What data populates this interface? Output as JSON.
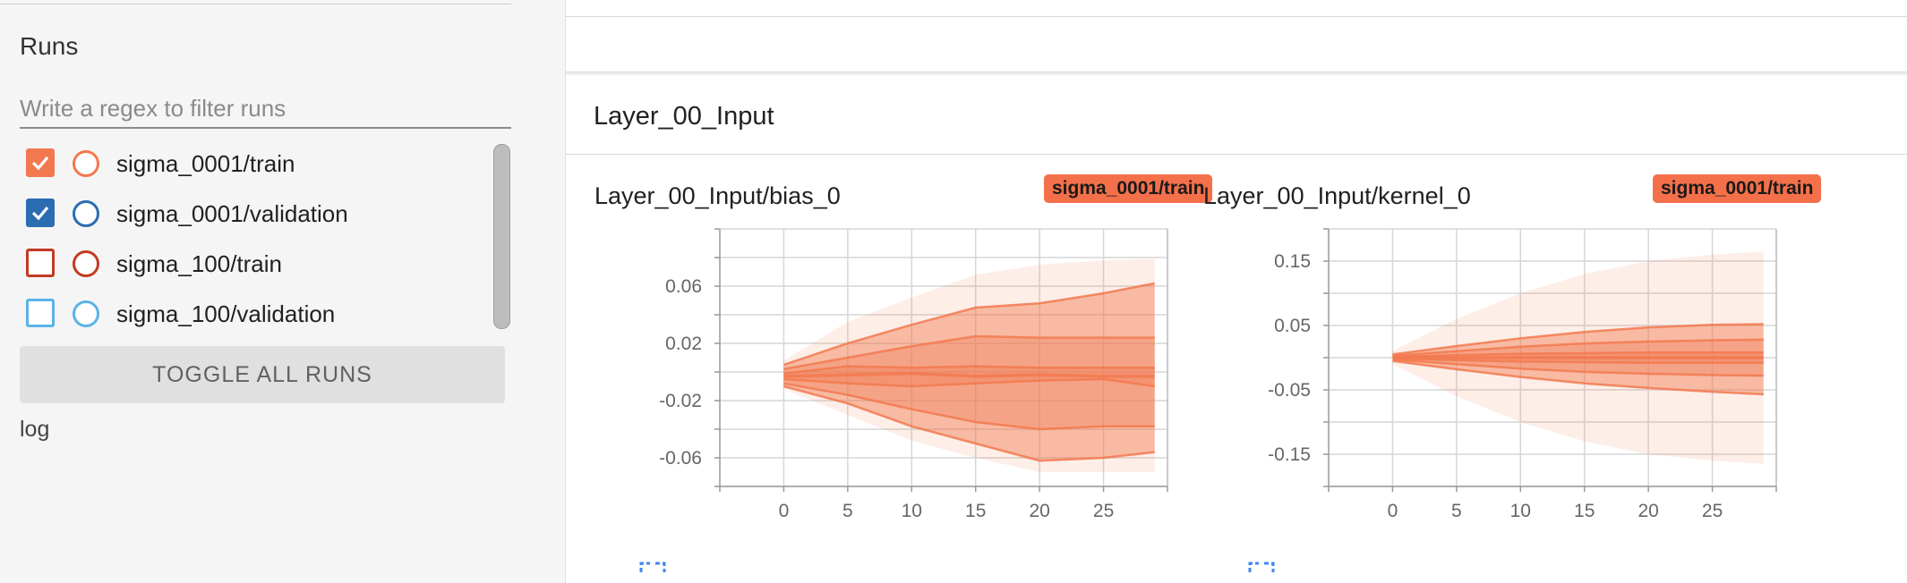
{
  "sidebar": {
    "runs_title": "Runs",
    "filter_placeholder": "Write a regex to filter runs",
    "runs": [
      {
        "label": "sigma_0001/train",
        "checked": true,
        "color": "#f2794f"
      },
      {
        "label": "sigma_0001/validation",
        "checked": true,
        "color": "#2b6db3"
      },
      {
        "label": "sigma_100/train",
        "checked": false,
        "color": "#c23b22"
      },
      {
        "label": "sigma_100/validation",
        "checked": false,
        "color": "#5ab3e8"
      }
    ],
    "toggle_label": "TOGGLE ALL RUNS",
    "log_label": "log"
  },
  "main": {
    "section_title": "Layer_00_Input",
    "panels": [
      {
        "title": "Layer_00_Input/bias_0",
        "run_badge": "sigma_0001/train"
      },
      {
        "title": "Layer_00_Input/kernel_0",
        "run_badge": "sigma_0001/train"
      }
    ]
  },
  "chart_data": [
    {
      "type": "area",
      "title": "Layer_00_Input/bias_0",
      "series_name": "sigma_0001/train",
      "color": "#f2794f",
      "x": [
        0,
        5,
        10,
        15,
        20,
        25
      ],
      "xticks": [
        "0",
        "5",
        "10",
        "15",
        "20",
        "25"
      ],
      "xlim": [
        -5,
        30
      ],
      "yticks": [
        "0.06",
        "0.02",
        "-0.02",
        "-0.06"
      ],
      "ylim": [
        -0.08,
        0.1
      ],
      "bands": {
        "x": [
          0,
          5,
          10,
          15,
          20,
          25,
          29
        ],
        "max": [
          0.008,
          0.035,
          0.052,
          0.068,
          0.075,
          0.078,
          0.079
        ],
        "p93": [
          0.005,
          0.02,
          0.033,
          0.045,
          0.048,
          0.055,
          0.062
        ],
        "p84": [
          0.002,
          0.01,
          0.018,
          0.025,
          0.024,
          0.024,
          0.024
        ],
        "p69": [
          -0.001,
          0.004,
          0.003,
          0.004,
          0.003,
          0.003,
          0.003
        ],
        "p50": [
          -0.003,
          -0.002,
          -0.001,
          -0.003,
          -0.002,
          -0.003,
          -0.003
        ],
        "p31": [
          -0.005,
          -0.008,
          -0.01,
          -0.008,
          -0.006,
          -0.005,
          -0.01
        ],
        "p16": [
          -0.008,
          -0.016,
          -0.026,
          -0.035,
          -0.04,
          -0.038,
          -0.038
        ],
        "p07": [
          -0.01,
          -0.022,
          -0.038,
          -0.05,
          -0.062,
          -0.06,
          -0.056
        ],
        "min": [
          -0.012,
          -0.03,
          -0.048,
          -0.06,
          -0.07,
          -0.07,
          -0.07
        ]
      }
    },
    {
      "type": "area",
      "title": "Layer_00_Input/kernel_0",
      "series_name": "sigma_0001/train",
      "color": "#f2794f",
      "x": [
        0,
        5,
        10,
        15,
        20,
        25
      ],
      "xticks": [
        "0",
        "5",
        "10",
        "15",
        "20",
        "25"
      ],
      "xlim": [
        -5,
        30
      ],
      "yticks": [
        "0.15",
        "0.05",
        "-0.05",
        "-0.15"
      ],
      "ylim": [
        -0.2,
        0.2
      ],
      "bands": {
        "x": [
          0,
          5,
          10,
          15,
          20,
          25,
          29
        ],
        "max": [
          0.01,
          0.06,
          0.1,
          0.13,
          0.15,
          0.16,
          0.165
        ],
        "p93": [
          0.005,
          0.018,
          0.03,
          0.04,
          0.047,
          0.051,
          0.052
        ],
        "p84": [
          0.003,
          0.01,
          0.017,
          0.022,
          0.025,
          0.027,
          0.028
        ],
        "p69": [
          0.001,
          0.004,
          0.006,
          0.007,
          0.008,
          0.008,
          0.008
        ],
        "p50": [
          0.0,
          0.0,
          0.0,
          0.0,
          0.0,
          0.0,
          0.0
        ],
        "p31": [
          -0.001,
          -0.004,
          -0.006,
          -0.007,
          -0.008,
          -0.008,
          -0.008
        ],
        "p16": [
          -0.003,
          -0.01,
          -0.017,
          -0.022,
          -0.025,
          -0.027,
          -0.028
        ],
        "p07": [
          -0.005,
          -0.018,
          -0.03,
          -0.04,
          -0.047,
          -0.053,
          -0.057
        ],
        "min": [
          -0.01,
          -0.06,
          -0.1,
          -0.13,
          -0.15,
          -0.16,
          -0.165
        ]
      }
    }
  ]
}
